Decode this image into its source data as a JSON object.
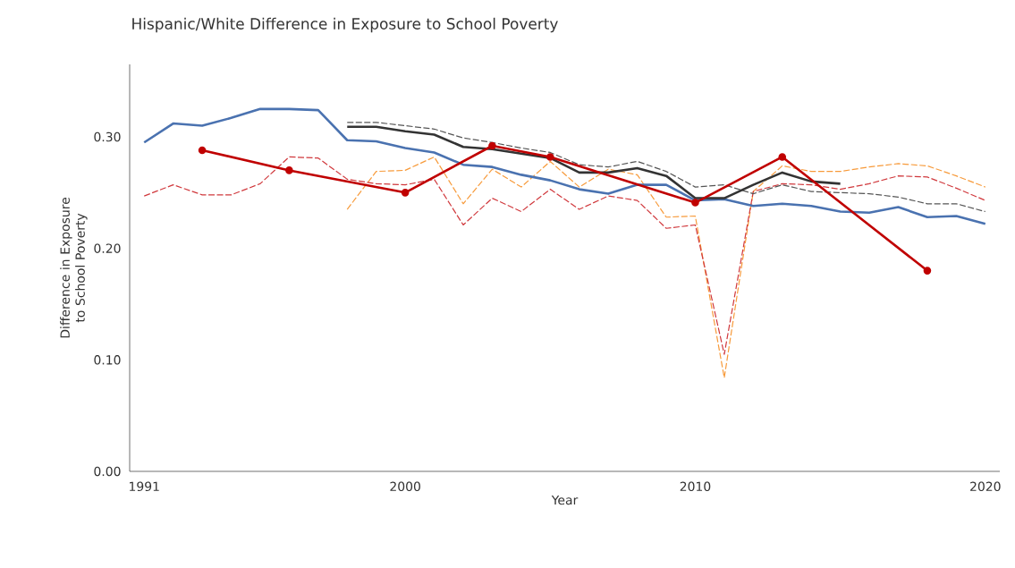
{
  "chart_data": {
    "type": "line",
    "title": "Hispanic/White Difference in Exposure to School Poverty",
    "xlabel": "Year",
    "ylabel": "Difference in Exposure to School Poverty",
    "xlim": [
      1990.5,
      2020.5
    ],
    "xticks": [
      1991,
      2000,
      2010,
      2020
    ],
    "ylim": [
      0,
      0.365
    ],
    "yticks": [
      {
        "value": 0,
        "label": "0.00"
      },
      {
        "value": 0.1,
        "label": "0.10"
      },
      {
        "value": 0.2,
        "label": "0.20"
      },
      {
        "value": 0.3,
        "label": "0.30"
      }
    ],
    "grid": false,
    "series": [
      {
        "color": "#f79a3a",
        "line_style": "dashed",
        "marker": "none",
        "x": [
          1998,
          1999,
          2000,
          2001,
          2002,
          2003,
          2004,
          2005,
          2006,
          2007,
          2008,
          2009,
          2010,
          2011,
          2012,
          2013,
          2014,
          2015,
          2016,
          2017,
          2018,
          2019,
          2020
        ],
        "values": [
          0.235,
          0.269,
          0.27,
          0.282,
          0.24,
          0.271,
          0.255,
          0.278,
          0.255,
          0.271,
          0.266,
          0.228,
          0.229,
          0.084,
          0.251,
          0.274,
          0.269,
          0.269,
          0.273,
          0.276,
          0.274,
          0.265,
          0.255
        ]
      },
      {
        "color": "#d0383c",
        "line_style": "dashed",
        "marker": "none",
        "x": [
          1991,
          1992,
          1993,
          1994,
          1995,
          1996,
          1997,
          1998,
          1999,
          2000,
          2001,
          2002,
          2003,
          2004,
          2005,
          2006,
          2007,
          2008,
          2009,
          2010,
          2011,
          2012,
          2013,
          2014,
          2015,
          2016,
          2017,
          2018,
          2019,
          2020
        ],
        "values": [
          0.247,
          0.257,
          0.248,
          0.248,
          0.258,
          0.282,
          0.281,
          0.262,
          0.258,
          0.257,
          0.262,
          0.221,
          0.245,
          0.233,
          0.253,
          0.235,
          0.247,
          0.243,
          0.218,
          0.221,
          0.105,
          0.251,
          0.258,
          0.257,
          0.253,
          0.258,
          0.265,
          0.264,
          0.254,
          0.243
        ]
      },
      {
        "color": "#555555",
        "line_style": "dashed",
        "marker": "none",
        "x": [
          1998,
          1999,
          2000,
          2001,
          2002,
          2003,
          2004,
          2005,
          2006,
          2007,
          2008,
          2009,
          2010,
          2011,
          2012,
          2013,
          2014,
          2015,
          2016,
          2017,
          2018,
          2019,
          2020
        ],
        "values": [
          0.313,
          0.313,
          0.31,
          0.307,
          0.299,
          0.295,
          0.29,
          0.286,
          0.275,
          0.273,
          0.278,
          0.269,
          0.255,
          0.257,
          0.249,
          0.257,
          0.251,
          0.25,
          0.249,
          0.246,
          0.24,
          0.24,
          0.233
        ]
      },
      {
        "color": "#4a72b0",
        "line_style": "solid",
        "marker": "none",
        "x": [
          1991,
          1992,
          1993,
          1994,
          1995,
          1996,
          1997,
          1998,
          1999,
          2000,
          2001,
          2002,
          2003,
          2004,
          2005,
          2006,
          2007,
          2008,
          2009,
          2010,
          2011,
          2012,
          2013,
          2014,
          2015,
          2016,
          2017,
          2018,
          2019,
          2020
        ],
        "values": [
          0.295,
          0.312,
          0.31,
          0.317,
          0.325,
          0.325,
          0.324,
          0.297,
          0.296,
          0.29,
          0.286,
          0.275,
          0.273,
          0.266,
          0.261,
          0.253,
          0.249,
          0.257,
          0.257,
          0.243,
          0.244,
          0.238,
          0.24,
          0.238,
          0.233,
          0.232,
          0.237,
          0.228,
          0.229,
          0.222
        ]
      },
      {
        "color": "#333333",
        "line_style": "solid",
        "marker": "none",
        "x": [
          1998,
          1999,
          2000,
          2001,
          2002,
          2003,
          2004,
          2005,
          2006,
          2007,
          2008,
          2009,
          2010,
          2011,
          2012,
          2013,
          2014,
          2015
        ],
        "values": [
          0.309,
          0.309,
          0.305,
          0.302,
          0.291,
          0.289,
          0.285,
          0.281,
          0.268,
          0.268,
          0.272,
          0.265,
          0.245,
          0.245,
          0.257,
          0.268,
          0.26,
          0.258
        ]
      },
      {
        "color": "#c00000",
        "line_style": "solid",
        "marker": "circle",
        "x": [
          1993,
          1996,
          2000,
          2003,
          2005,
          2010,
          2013,
          2018
        ],
        "values": [
          0.288,
          0.27,
          0.25,
          0.292,
          0.282,
          0.241,
          0.282,
          0.18
        ]
      }
    ]
  }
}
